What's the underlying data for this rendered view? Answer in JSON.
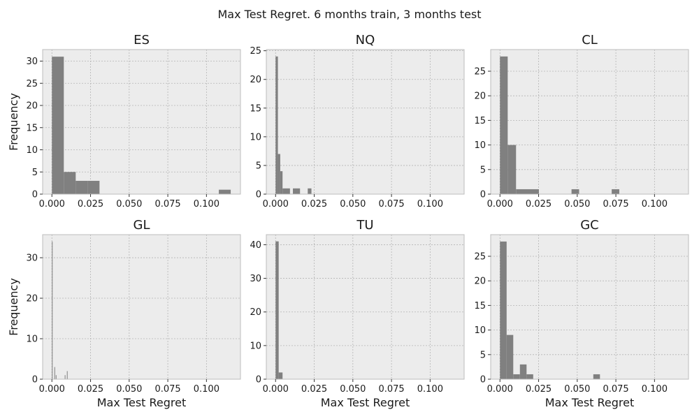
{
  "figure": {
    "title": "Max Test Regret.  6 months train, 3 months test"
  },
  "colors": {
    "bar": "#808080",
    "background": "#ececec",
    "grid": "#b4b4b4",
    "frame": "#bcbcbc"
  },
  "chart_data": [
    {
      "type": "bar",
      "title": "ES",
      "xlabel": "",
      "ylabel": "Frequency",
      "xlim": [
        -0.006,
        0.122
      ],
      "ylim": [
        0,
        32.6
      ],
      "xticks": [
        "0.000",
        "0.025",
        "0.050",
        "0.075",
        "0.100"
      ],
      "xtick_values": [
        0,
        0.025,
        0.05,
        0.075,
        0.1
      ],
      "yticks": [
        0,
        5,
        10,
        15,
        20,
        25,
        30
      ],
      "grid": true,
      "bins": [
        {
          "x0": 0.0,
          "x1": 0.0077,
          "count": 31
        },
        {
          "x0": 0.0077,
          "x1": 0.0154,
          "count": 5
        },
        {
          "x0": 0.0154,
          "x1": 0.0231,
          "count": 3
        },
        {
          "x0": 0.0231,
          "x1": 0.0308,
          "count": 3
        },
        {
          "x0": 0.108,
          "x1": 0.1157,
          "count": 1
        }
      ]
    },
    {
      "type": "bar",
      "title": "NQ",
      "xlabel": "",
      "ylabel": "",
      "xlim": [
        -0.006,
        0.122
      ],
      "ylim": [
        0,
        25.2
      ],
      "xticks": [
        "0.000",
        "0.025",
        "0.050",
        "0.075",
        "0.100"
      ],
      "xtick_values": [
        0,
        0.025,
        0.05,
        0.075,
        0.1
      ],
      "yticks": [
        0,
        5,
        10,
        15,
        20,
        25
      ],
      "grid": true,
      "bins": [
        {
          "x0": 0.0,
          "x1": 0.0015,
          "count": 24
        },
        {
          "x0": 0.0015,
          "x1": 0.003,
          "count": 7
        },
        {
          "x0": 0.003,
          "x1": 0.0045,
          "count": 4
        },
        {
          "x0": 0.0045,
          "x1": 0.0093,
          "count": 1
        },
        {
          "x0": 0.0112,
          "x1": 0.0158,
          "count": 1
        },
        {
          "x0": 0.0208,
          "x1": 0.0232,
          "count": 1
        }
      ]
    },
    {
      "type": "bar",
      "title": "CL",
      "xlabel": "",
      "ylabel": "",
      "xlim": [
        -0.006,
        0.122
      ],
      "ylim": [
        0,
        29.4
      ],
      "xticks": [
        "0.000",
        "0.025",
        "0.050",
        "0.075",
        "0.100"
      ],
      "xtick_values": [
        0,
        0.025,
        0.05,
        0.075,
        0.1
      ],
      "yticks": [
        0,
        5,
        10,
        15,
        20,
        25
      ],
      "grid": true,
      "bins": [
        {
          "x0": 0.0,
          "x1": 0.005,
          "count": 28
        },
        {
          "x0": 0.005,
          "x1": 0.0104,
          "count": 10
        },
        {
          "x0": 0.0104,
          "x1": 0.0252,
          "count": 1
        },
        {
          "x0": 0.0463,
          "x1": 0.0512,
          "count": 1
        },
        {
          "x0": 0.0723,
          "x1": 0.0772,
          "count": 1
        }
      ]
    },
    {
      "type": "bar",
      "title": "GL",
      "xlabel": "Max Test Regret",
      "ylabel": "Frequency",
      "xlim": [
        -0.006,
        0.122
      ],
      "ylim": [
        0,
        35.7
      ],
      "xticks": [
        "0.000",
        "0.025",
        "0.050",
        "0.075",
        "0.100"
      ],
      "xtick_values": [
        0,
        0.025,
        0.05,
        0.075,
        0.1
      ],
      "yticks": [
        0,
        10,
        20,
        30
      ],
      "grid": true,
      "bins": [
        {
          "x0": 0.0,
          "x1": 0.0004,
          "count": 34
        },
        {
          "x0": 0.0016,
          "x1": 0.002,
          "count": 3
        },
        {
          "x0": 0.0025,
          "x1": 0.0029,
          "count": 1
        },
        {
          "x0": 0.0083,
          "x1": 0.0087,
          "count": 1
        },
        {
          "x0": 0.0097,
          "x1": 0.0101,
          "count": 2
        }
      ]
    },
    {
      "type": "bar",
      "title": "TU",
      "xlabel": "Max Test Regret",
      "ylabel": "",
      "xlim": [
        -0.006,
        0.122
      ],
      "ylim": [
        0,
        43
      ],
      "xticks": [
        "0.000",
        "0.025",
        "0.050",
        "0.075",
        "0.100"
      ],
      "xtick_values": [
        0,
        0.025,
        0.05,
        0.075,
        0.1
      ],
      "yticks": [
        0,
        10,
        20,
        30,
        40
      ],
      "grid": true,
      "bins": [
        {
          "x0": 0.0,
          "x1": 0.002,
          "count": 41
        },
        {
          "x0": 0.002,
          "x1": 0.0045,
          "count": 2
        }
      ]
    },
    {
      "type": "bar",
      "title": "GC",
      "xlabel": "Max Test Regret",
      "ylabel": "",
      "xlim": [
        -0.006,
        0.122
      ],
      "ylim": [
        0,
        29.4
      ],
      "xticks": [
        "0.000",
        "0.025",
        "0.050",
        "0.075",
        "0.100"
      ],
      "xtick_values": [
        0,
        0.025,
        0.05,
        0.075,
        0.1
      ],
      "yticks": [
        0,
        5,
        10,
        15,
        20,
        25
      ],
      "grid": true,
      "bins": [
        {
          "x0": 0.0,
          "x1": 0.0043,
          "count": 28
        },
        {
          "x0": 0.0043,
          "x1": 0.0086,
          "count": 9
        },
        {
          "x0": 0.0086,
          "x1": 0.0129,
          "count": 1
        },
        {
          "x0": 0.0129,
          "x1": 0.0172,
          "count": 3
        },
        {
          "x0": 0.0172,
          "x1": 0.0215,
          "count": 1
        },
        {
          "x0": 0.0604,
          "x1": 0.0647,
          "count": 1
        }
      ]
    }
  ]
}
